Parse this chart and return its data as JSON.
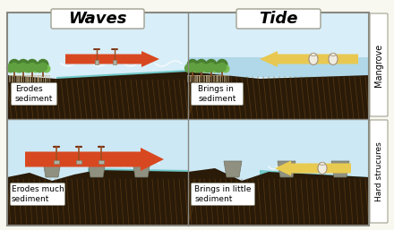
{
  "title_waves": "Waves",
  "title_tide": "Tide",
  "label_mangrove": "Mangrove",
  "label_hard": "Hard strucures",
  "label_erodes": "Erodes\nsediment",
  "label_brings": "Brings in\nsediment",
  "label_erodes_much": "Erodes much\nsediment",
  "label_brings_little": "Brings in little\nsediment",
  "sky_color_top": "#d8eef8",
  "sky_color_bot": "#c8e4f0",
  "water_teal": "#70c8c8",
  "water_light": "#88d8e0",
  "ground_dark": "#2a1a08",
  "ground_hatch": "#6b4818",
  "arrow_red": "#d84820",
  "arrow_yellow": "#e8c850",
  "tree_green_dark": "#488030",
  "tree_green_mid": "#60a040",
  "tree_green_light": "#78c050",
  "tree_trunk_color": "#805028",
  "struct_gray": "#909080",
  "outer_bg": "#f8f8f0",
  "box_bg": "#ffffff",
  "border_color": "#888880",
  "title_fontsize": 13,
  "label_fontsize": 7
}
